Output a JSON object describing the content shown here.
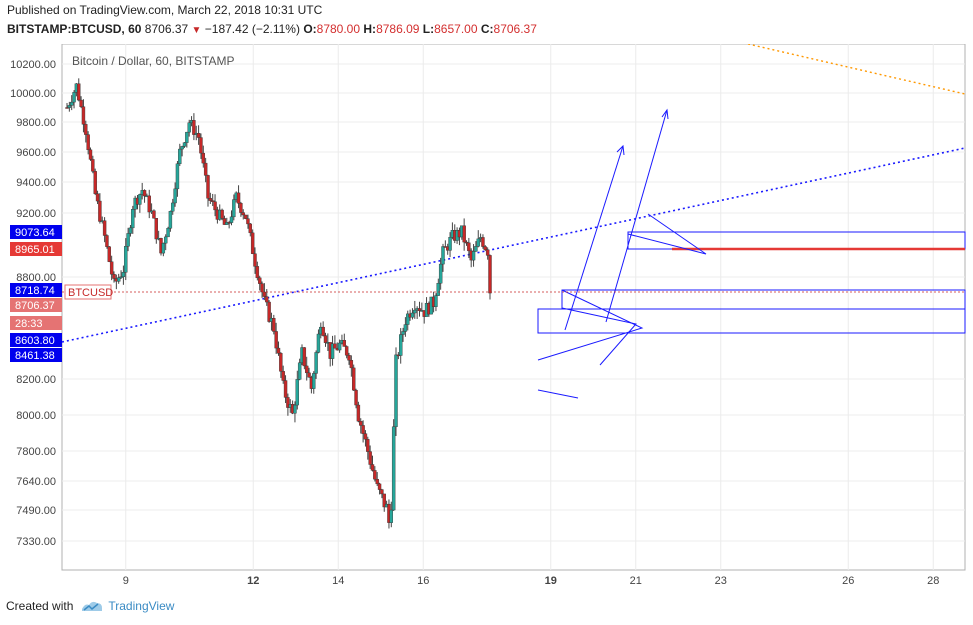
{
  "header": {
    "published": "Published on TradingView.com, March 22, 2018 10:31 UTC",
    "symbol": "BITSTAMP:BTCUSD, 60",
    "last": "8706.37",
    "change": "−187.42 (−2.11%)",
    "o_label": "O:",
    "o": "8780.00",
    "h_label": "H:",
    "h": "8786.09",
    "l_label": "L:",
    "l": "8657.00",
    "c_label": "C:",
    "c": "8706.37"
  },
  "chart_data": {
    "type": "candlestick",
    "title": "Bitcoin / Dollar, 60, BITSTAMP",
    "x_ticks": [
      "9",
      "12",
      "14",
      "16",
      "19",
      "21",
      "23",
      "26",
      "28"
    ],
    "y_ticks": [
      10200,
      10000,
      9800,
      9600,
      9400,
      9200,
      8800,
      8200,
      8000,
      7800,
      7640,
      7490,
      7330
    ],
    "ylim": [
      7270,
      10330
    ],
    "price_line": 8706.37,
    "price_labels": [
      {
        "text": "9073.64",
        "color": "#0000ee"
      },
      {
        "text": "8965.01",
        "color": "#e53935"
      },
      {
        "text": "8718.74",
        "color": "#0000ee"
      },
      {
        "text": "8706.37",
        "color": "#e57373"
      },
      {
        "text": "28:33",
        "color": "#e57373"
      },
      {
        "text": "8603.80",
        "color": "#0000ee"
      },
      {
        "text": "8461.38",
        "color": "#0000ee"
      }
    ],
    "price_marker": "BTCUSD",
    "colors": {
      "up": "#26a69a",
      "down": "#c62828",
      "wick": "#555555",
      "drawing": "#1a1aff",
      "orange": "#ff9800",
      "support": "#e53935"
    },
    "path": [
      [
        0,
        9900
      ],
      [
        2,
        10050
      ],
      [
        4,
        9750
      ],
      [
        6,
        9320
      ],
      [
        8,
        9050
      ],
      [
        10,
        8750
      ],
      [
        12,
        8850
      ],
      [
        14,
        9250
      ],
      [
        16,
        9350
      ],
      [
        18,
        9200
      ],
      [
        20,
        8950
      ],
      [
        22,
        9200
      ],
      [
        24,
        9600
      ],
      [
        26,
        9800
      ],
      [
        28,
        9700
      ],
      [
        30,
        9300
      ],
      [
        32,
        9200
      ],
      [
        34,
        9100
      ],
      [
        36,
        9300
      ],
      [
        38,
        9180
      ],
      [
        40,
        8900
      ],
      [
        42,
        8650
      ],
      [
        44,
        8500
      ],
      [
        46,
        8150
      ],
      [
        48,
        8000
      ],
      [
        50,
        8350
      ],
      [
        52,
        8150
      ],
      [
        54,
        8550
      ],
      [
        56,
        8350
      ],
      [
        58,
        8400
      ],
      [
        60,
        8350
      ],
      [
        62,
        8000
      ],
      [
        64,
        7800
      ],
      [
        66,
        7600
      ],
      [
        68,
        7500
      ],
      [
        68.8,
        7380
      ],
      [
        70,
        8300
      ],
      [
        72,
        8550
      ],
      [
        74,
        8650
      ],
      [
        76,
        8600
      ],
      [
        78,
        8650
      ],
      [
        80,
        8950
      ],
      [
        82,
        9050
      ],
      [
        84,
        9080
      ],
      [
        86,
        8900
      ],
      [
        88,
        9050
      ],
      [
        89.5,
        8965
      ],
      [
        90,
        8720
      ]
    ]
  },
  "footer": {
    "created_with": "Created with",
    "brand": "TradingView"
  }
}
